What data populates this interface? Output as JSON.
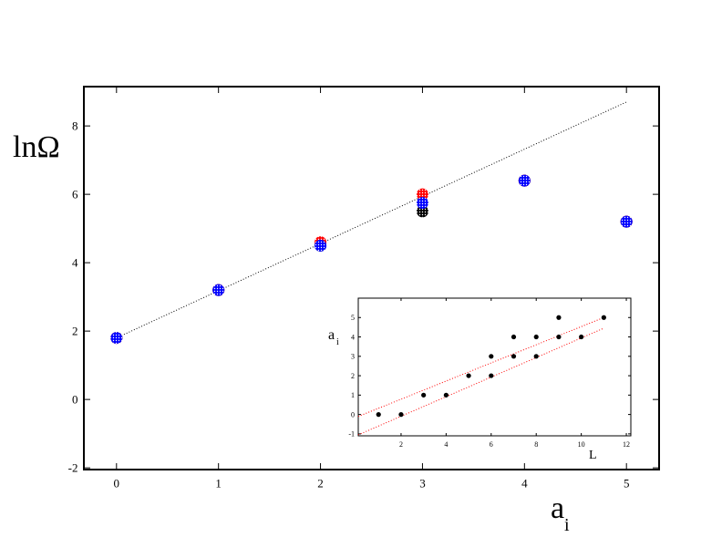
{
  "chart_data": [
    {
      "type": "scatter",
      "ylabel": "lnΩ",
      "xlabel": {
        "text": "a",
        "subscript": "i"
      },
      "xlim": [
        -0.32,
        5.32
      ],
      "ylim": [
        -2.05,
        9.15
      ],
      "xticks": [
        0,
        1,
        2,
        3,
        4,
        5
      ],
      "yticks": [
        -2,
        0,
        2,
        4,
        6,
        8
      ],
      "series": [
        {
          "mode": "line",
          "style": "dotted",
          "color": "#000000",
          "x": [
            0,
            5
          ],
          "values": [
            1.8,
            8.7
          ]
        },
        {
          "mode": "markers",
          "color": "#000000",
          "x": [
            0,
            1,
            2,
            3,
            4,
            5
          ],
          "values": [
            1.8,
            3.2,
            4.5,
            5.5,
            6.4,
            5.2
          ]
        },
        {
          "mode": "markers",
          "color": "#ff0000",
          "x": [
            0,
            1,
            2,
            3,
            4,
            5
          ],
          "values": [
            1.8,
            3.2,
            4.6,
            6.0,
            6.4,
            5.2
          ]
        },
        {
          "mode": "markers",
          "color": "#0000ff",
          "x": [
            0,
            1,
            2,
            3,
            4,
            5
          ],
          "values": [
            1.8,
            3.2,
            4.5,
            5.75,
            6.4,
            5.2
          ]
        }
      ]
    },
    {
      "type": "scatter",
      "ylabel": {
        "text": "a",
        "subscript": "i"
      },
      "xlabel": "L",
      "xlim": [
        0.1,
        12.2
      ],
      "ylim": [
        -1.1,
        6
      ],
      "xticks": [
        2,
        4,
        6,
        8,
        10,
        12
      ],
      "yticks": [
        -1,
        0,
        1,
        2,
        3,
        4,
        5
      ],
      "series": [
        {
          "mode": "line",
          "style": "dotted",
          "color": "#ff0000",
          "x": [
            0.1,
            11
          ],
          "values": [
            -0.1,
            5.0
          ]
        },
        {
          "mode": "line",
          "style": "dotted",
          "color": "#ff0000",
          "x": [
            0.1,
            11
          ],
          "values": [
            -1.05,
            4.45
          ]
        },
        {
          "mode": "markers",
          "color": "#000000",
          "x": [
            1,
            2,
            3,
            4,
            5,
            6,
            6,
            7,
            7,
            8,
            8,
            9,
            9,
            10,
            11
          ],
          "values": [
            0,
            0,
            1,
            1,
            2,
            2,
            3,
            3,
            4,
            3,
            4,
            4,
            5,
            4,
            5
          ]
        }
      ]
    }
  ]
}
